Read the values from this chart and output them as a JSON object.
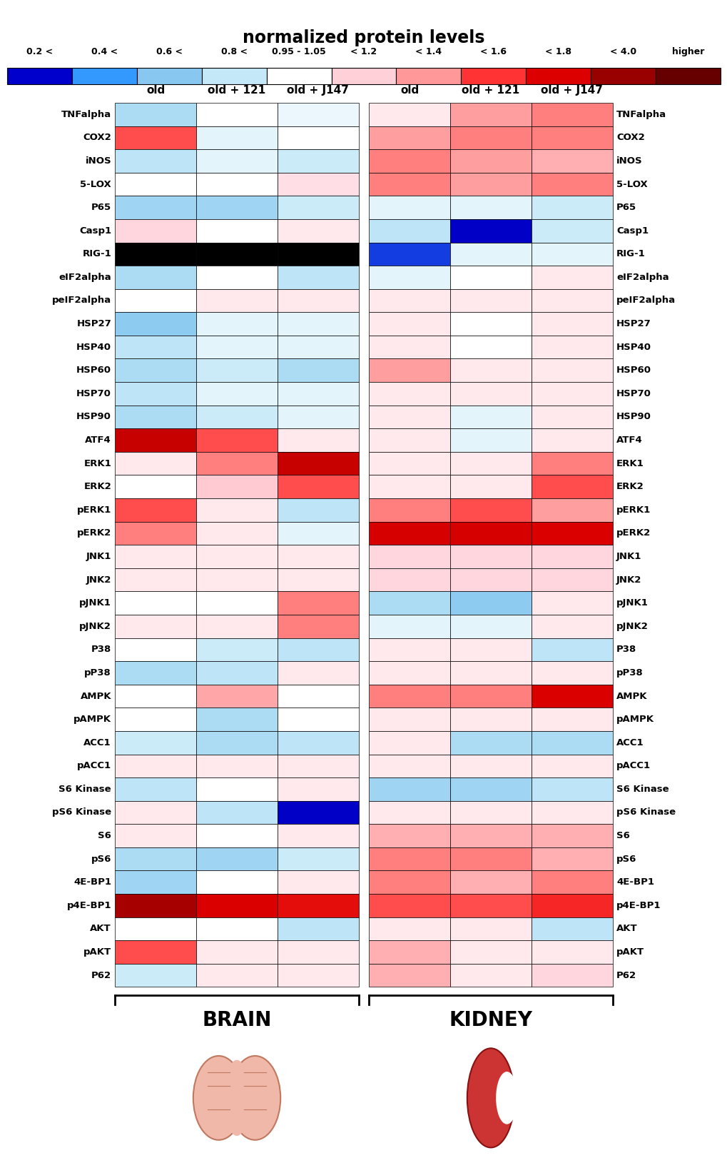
{
  "title": "normalized protein levels",
  "proteins": [
    "TNFalpha",
    "COX2",
    "iNOS",
    "5-LOX",
    "P65",
    "Casp1",
    "RIG-1",
    "eIF2alpha",
    "peIF2alpha",
    "HSP27",
    "HSP40",
    "HSP60",
    "HSP70",
    "HSP90",
    "ATF4",
    "ERK1",
    "ERK2",
    "pERK1",
    "pERK2",
    "JNK1",
    "JNK2",
    "pJNK1",
    "pJNK2",
    "P38",
    "pP38",
    "AMPK",
    "pAMPK",
    "ACC1",
    "pACC1",
    "S6 Kinase",
    "pS6 Kinase",
    "S6",
    "pS6",
    "4E-BP1",
    "p4E-BP1",
    "AKT",
    "pAKT",
    "P62"
  ],
  "col_labels": [
    "old",
    "old + 121",
    "old + J147"
  ],
  "brain_values": [
    [
      0.72,
      1.0,
      0.9
    ],
    [
      1.55,
      0.88,
      1.0
    ],
    [
      0.78,
      0.88,
      0.82
    ],
    [
      1.0,
      1.0,
      1.15
    ],
    [
      0.68,
      0.68,
      0.82
    ],
    [
      1.18,
      1.0,
      1.12
    ],
    [
      -1,
      -1,
      -1
    ],
    [
      0.72,
      1.0,
      0.78
    ],
    [
      1.0,
      1.12,
      1.12
    ],
    [
      0.62,
      0.88,
      0.88
    ],
    [
      0.78,
      0.88,
      0.88
    ],
    [
      0.72,
      0.82,
      0.72
    ],
    [
      0.78,
      0.88,
      0.88
    ],
    [
      0.72,
      0.82,
      0.88
    ],
    [
      2.2,
      1.55,
      1.12
    ],
    [
      1.12,
      1.45,
      2.2
    ],
    [
      1.0,
      1.22,
      1.55
    ],
    [
      1.55,
      1.12,
      0.78
    ],
    [
      1.45,
      1.12,
      0.88
    ],
    [
      1.12,
      1.12,
      1.12
    ],
    [
      1.12,
      1.12,
      1.12
    ],
    [
      1.0,
      1.0,
      1.45
    ],
    [
      1.12,
      1.12,
      1.45
    ],
    [
      1.0,
      0.82,
      0.78
    ],
    [
      0.72,
      0.78,
      1.12
    ],
    [
      1.0,
      1.35,
      1.0
    ],
    [
      1.0,
      0.72,
      1.0
    ],
    [
      0.82,
      0.72,
      0.78
    ],
    [
      1.12,
      1.12,
      1.12
    ],
    [
      0.78,
      1.0,
      1.12
    ],
    [
      1.12,
      0.78,
      0.18
    ],
    [
      1.12,
      1.0,
      1.12
    ],
    [
      0.72,
      0.68,
      0.82
    ],
    [
      0.68,
      1.0,
      1.12
    ],
    [
      2.8,
      1.85,
      1.75
    ],
    [
      1.0,
      1.0,
      0.78
    ],
    [
      1.55,
      1.12,
      1.12
    ],
    [
      0.82,
      1.12,
      1.12
    ]
  ],
  "kidney_values": [
    [
      1.12,
      1.38,
      1.45
    ],
    [
      1.38,
      1.45,
      1.45
    ],
    [
      1.45,
      1.38,
      1.32
    ],
    [
      1.45,
      1.38,
      1.45
    ],
    [
      0.88,
      0.88,
      0.82
    ],
    [
      0.78,
      0.18,
      0.82
    ],
    [
      0.28,
      0.88,
      0.88
    ],
    [
      0.88,
      1.0,
      1.12
    ],
    [
      1.12,
      1.12,
      1.12
    ],
    [
      1.12,
      1.0,
      1.12
    ],
    [
      1.12,
      1.0,
      1.12
    ],
    [
      1.38,
      1.12,
      1.12
    ],
    [
      1.12,
      1.12,
      1.12
    ],
    [
      1.12,
      0.88,
      1.12
    ],
    [
      1.12,
      0.88,
      1.12
    ],
    [
      1.12,
      1.12,
      1.45
    ],
    [
      1.12,
      1.12,
      1.55
    ],
    [
      1.45,
      1.55,
      1.38
    ],
    [
      1.9,
      1.9,
      1.85
    ],
    [
      1.18,
      1.18,
      1.18
    ],
    [
      1.18,
      1.18,
      1.18
    ],
    [
      0.72,
      0.62,
      1.12
    ],
    [
      0.88,
      0.88,
      1.12
    ],
    [
      1.12,
      1.12,
      0.78
    ],
    [
      1.12,
      1.12,
      1.12
    ],
    [
      1.45,
      1.45,
      1.85
    ],
    [
      1.12,
      1.12,
      1.12
    ],
    [
      1.12,
      0.72,
      0.72
    ],
    [
      1.12,
      1.12,
      1.12
    ],
    [
      0.68,
      0.68,
      0.78
    ],
    [
      1.12,
      1.12,
      1.12
    ],
    [
      1.32,
      1.32,
      1.32
    ],
    [
      1.45,
      1.45,
      1.32
    ],
    [
      1.45,
      1.32,
      1.45
    ],
    [
      1.55,
      1.55,
      1.65
    ],
    [
      1.12,
      1.12,
      0.78
    ],
    [
      1.32,
      1.12,
      1.12
    ],
    [
      1.32,
      1.12,
      1.18
    ]
  ],
  "cbar_segment_colors": [
    "#0000CD",
    "#3399FF",
    "#88C8F0",
    "#C5E8F8",
    "#FFFFFF",
    "#FFD0D8",
    "#FF9999",
    "#FF3333",
    "#DD0000",
    "#990000",
    "#660000"
  ],
  "cbar_labels": [
    "0.2 <",
    "0.4 <",
    "0.6 <",
    "0.8 <",
    "0.95 - 1.05",
    "< 1.2",
    "< 1.4",
    "< 1.6",
    "< 1.8",
    "< 4.0",
    "higher"
  ],
  "black_value": -1
}
